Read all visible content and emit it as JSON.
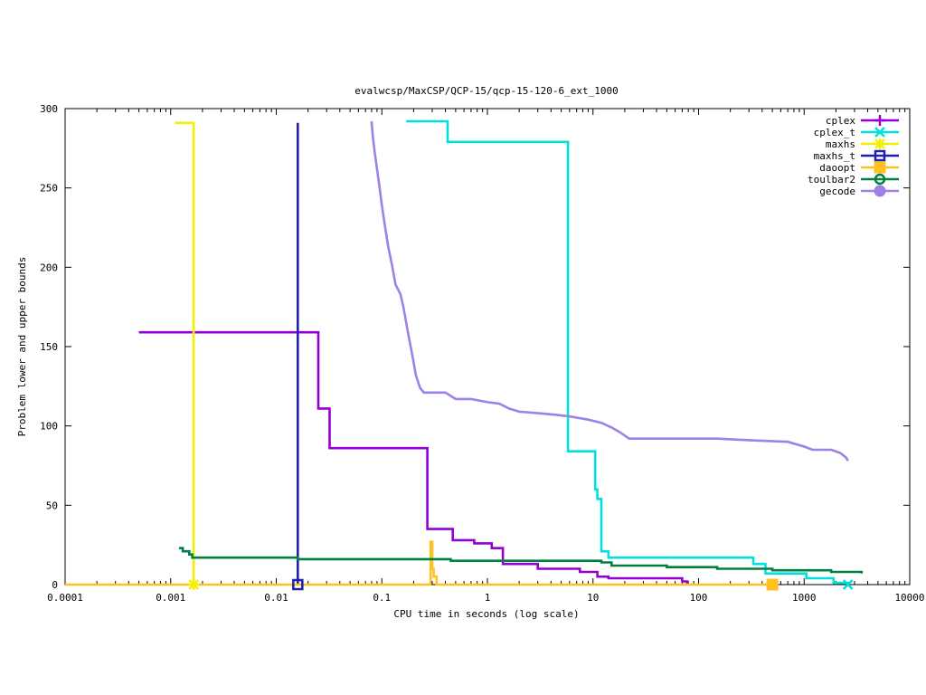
{
  "chart_data": {
    "type": "line",
    "title": "evalwcsp/MaxCSP/QCP-15/qcp-15-120-6_ext_1000",
    "xlabel": "CPU time in seconds (log scale)",
    "ylabel": "Problem lower and upper bounds",
    "xscale": "log",
    "xlim": [
      0.0001,
      10000
    ],
    "ylim": [
      0,
      300
    ],
    "xticks": [
      0.0001,
      0.001,
      0.01,
      0.1,
      1,
      10,
      100,
      1000,
      10000
    ],
    "xtick_labels": [
      "0.0001",
      "0.001",
      "0.01",
      "0.1",
      "1",
      "10",
      "100",
      "1000",
      "10000"
    ],
    "yticks": [
      0,
      50,
      100,
      150,
      200,
      250,
      300
    ],
    "ytick_labels": [
      "0",
      "50",
      "100",
      "150",
      "200",
      "250",
      "300"
    ],
    "legend_position": "top-right",
    "grid": false,
    "series": [
      {
        "name": "cplex",
        "color": "#9400d3",
        "marker": "plus",
        "step": true,
        "points": [
          [
            0.0005,
            159
          ],
          [
            0.025,
            159
          ],
          [
            0.025,
            111
          ],
          [
            0.032,
            111
          ],
          [
            0.032,
            86
          ],
          [
            0.27,
            86
          ],
          [
            0.27,
            35
          ],
          [
            0.47,
            35
          ],
          [
            0.47,
            28
          ],
          [
            0.75,
            28
          ],
          [
            0.75,
            26
          ],
          [
            1.1,
            26
          ],
          [
            1.1,
            23
          ],
          [
            1.4,
            23
          ],
          [
            1.4,
            13
          ],
          [
            3,
            13
          ],
          [
            3,
            10
          ],
          [
            7.5,
            10
          ],
          [
            7.5,
            8
          ],
          [
            11,
            8
          ],
          [
            11,
            5
          ],
          [
            14,
            5
          ],
          [
            14,
            4
          ],
          [
            70,
            4
          ],
          [
            70,
            2
          ],
          [
            78,
            2
          ],
          [
            78,
            0
          ]
        ]
      },
      {
        "name": "cplex_t",
        "color": "#00e0e0",
        "marker": "x",
        "step": true,
        "points": [
          [
            0.17,
            292
          ],
          [
            0.42,
            292
          ],
          [
            0.42,
            279
          ],
          [
            5.8,
            279
          ],
          [
            5.8,
            84
          ],
          [
            10.5,
            84
          ],
          [
            10.5,
            60
          ],
          [
            11,
            60
          ],
          [
            11,
            54
          ],
          [
            12,
            54
          ],
          [
            12,
            21
          ],
          [
            14,
            21
          ],
          [
            14,
            17
          ],
          [
            330,
            17
          ],
          [
            330,
            13
          ],
          [
            430,
            13
          ],
          [
            430,
            7
          ],
          [
            1050,
            7
          ],
          [
            1050,
            4
          ],
          [
            1900,
            4
          ],
          [
            1900,
            1
          ],
          [
            2600,
            1
          ],
          [
            2600,
            0
          ]
        ]
      },
      {
        "name": "maxhs",
        "color": "#f0f000",
        "marker": "star",
        "step": true,
        "points": [
          [
            0.0011,
            291
          ],
          [
            0.00165,
            291
          ],
          [
            0.00165,
            0
          ]
        ]
      },
      {
        "name": "maxhs_t",
        "color": "#2020b0",
        "marker": "square",
        "step": true,
        "points": [
          [
            0.016,
            291
          ],
          [
            0.016,
            0
          ]
        ]
      },
      {
        "name": "daoopt",
        "color": "#ffc020",
        "marker": "filled-square",
        "step": true,
        "points": [
          [
            0.0001,
            0
          ],
          [
            0.29,
            0
          ],
          [
            0.29,
            27
          ],
          [
            0.3,
            27
          ],
          [
            0.3,
            10
          ],
          [
            0.31,
            10
          ],
          [
            0.31,
            5
          ],
          [
            0.33,
            5
          ],
          [
            0.33,
            0
          ],
          [
            500,
            0
          ]
        ]
      },
      {
        "name": "toulbar2",
        "color": "#008040",
        "marker": "circle",
        "step": true,
        "points": [
          [
            0.0012,
            23
          ],
          [
            0.0013,
            23
          ],
          [
            0.0013,
            21
          ],
          [
            0.0015,
            21
          ],
          [
            0.0015,
            19
          ],
          [
            0.0016,
            19
          ],
          [
            0.0016,
            17
          ],
          [
            0.016,
            17
          ],
          [
            0.016,
            16
          ],
          [
            0.45,
            16
          ],
          [
            0.45,
            15
          ],
          [
            12,
            15
          ],
          [
            12,
            14
          ],
          [
            15,
            14
          ],
          [
            15,
            12
          ],
          [
            50,
            12
          ],
          [
            50,
            11
          ],
          [
            150,
            11
          ],
          [
            150,
            10
          ],
          [
            500,
            10
          ],
          [
            500,
            9
          ],
          [
            1800,
            9
          ],
          [
            1800,
            8
          ],
          [
            3500,
            8
          ],
          [
            3500,
            7
          ]
        ]
      },
      {
        "name": "gecode",
        "color": "#9d80e8",
        "marker": "filled-circle",
        "step": false,
        "points": [
          [
            0.08,
            292
          ],
          [
            0.082,
            283
          ],
          [
            0.085,
            274
          ],
          [
            0.09,
            262
          ],
          [
            0.095,
            251
          ],
          [
            0.1,
            239
          ],
          [
            0.107,
            226
          ],
          [
            0.115,
            213
          ],
          [
            0.125,
            201
          ],
          [
            0.135,
            189
          ],
          [
            0.15,
            183
          ],
          [
            0.16,
            175
          ],
          [
            0.17,
            165
          ],
          [
            0.18,
            156
          ],
          [
            0.19,
            148
          ],
          [
            0.2,
            140
          ],
          [
            0.21,
            132
          ],
          [
            0.23,
            124
          ],
          [
            0.25,
            121
          ],
          [
            0.4,
            121
          ],
          [
            0.5,
            117
          ],
          [
            0.7,
            117
          ],
          [
            1,
            115
          ],
          [
            1.3,
            114
          ],
          [
            1.6,
            111
          ],
          [
            2,
            109
          ],
          [
            3,
            108
          ],
          [
            4.5,
            107
          ],
          [
            6,
            106
          ],
          [
            9,
            104
          ],
          [
            12,
            102
          ],
          [
            15,
            99
          ],
          [
            18,
            96
          ],
          [
            22,
            92
          ],
          [
            150,
            92
          ],
          [
            300,
            91
          ],
          [
            700,
            90
          ],
          [
            1000,
            87
          ],
          [
            1200,
            85
          ],
          [
            1800,
            85
          ],
          [
            2200,
            83
          ],
          [
            2500,
            80
          ],
          [
            2600,
            78
          ]
        ]
      }
    ]
  }
}
